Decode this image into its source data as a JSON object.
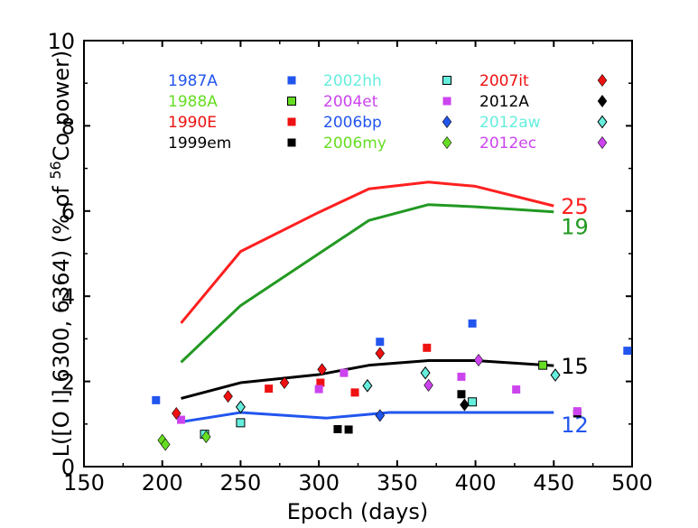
{
  "chart_data": {
    "type": "scatter",
    "xlabel": "Epoch (days)",
    "ylabel": {
      "main": "L([O I] 6300, 6364) (% of ",
      "sup": "56",
      "tail": "Co power)"
    },
    "xlim": [
      150,
      500
    ],
    "ylim": [
      0,
      10
    ],
    "xticks": [
      150,
      200,
      250,
      300,
      350,
      400,
      450,
      500
    ],
    "yticks": [
      0,
      2,
      4,
      6,
      8,
      10
    ],
    "grid": false,
    "legend_position": "top",
    "models": [
      {
        "name": "25",
        "color": "#ff2020",
        "x": [
          212,
          250,
          300,
          332,
          370,
          400,
          450
        ],
        "y": [
          3.37,
          5.05,
          5.97,
          6.52,
          6.68,
          6.58,
          6.12
        ]
      },
      {
        "name": "19",
        "color": "#229922",
        "x": [
          212,
          250,
          300,
          332,
          370,
          400,
          450
        ],
        "y": [
          2.45,
          3.78,
          5.0,
          5.78,
          6.15,
          6.1,
          5.98
        ]
      },
      {
        "name": "15",
        "color": "#000000",
        "x": [
          212,
          250,
          300,
          332,
          370,
          400,
          450
        ],
        "y": [
          1.6,
          1.97,
          2.16,
          2.38,
          2.49,
          2.49,
          2.37
        ]
      },
      {
        "name": "12",
        "color": "#2255ee",
        "x": [
          212,
          250,
          305,
          345,
          400,
          450
        ],
        "y": [
          1.05,
          1.27,
          1.14,
          1.27,
          1.27,
          1.27
        ]
      }
    ],
    "series": [
      {
        "name": "1987A",
        "color": "#2255ee",
        "marker": "square",
        "x": [
          196,
          339,
          398,
          497
        ],
        "y": [
          1.56,
          2.93,
          3.36,
          2.72
        ]
      },
      {
        "name": "1988A",
        "color": "#66dd22",
        "marker": "square-outline",
        "x": [
          443
        ],
        "y": [
          2.38
        ]
      },
      {
        "name": "1990E",
        "color": "#ee1111",
        "marker": "square",
        "x": [
          268,
          301,
          323,
          369
        ],
        "y": [
          1.83,
          1.97,
          1.74,
          2.79
        ]
      },
      {
        "name": "1999em",
        "color": "#000000",
        "marker": "square",
        "x": [
          312,
          319,
          391,
          465
        ],
        "y": [
          0.88,
          0.87,
          1.7,
          1.25
        ]
      },
      {
        "name": "2002hh",
        "color": "#66eedd",
        "marker": "square-outline",
        "x": [
          227,
          250,
          398
        ],
        "y": [
          0.76,
          1.03,
          1.52
        ]
      },
      {
        "name": "2004et",
        "color": "#cc44ee",
        "marker": "square",
        "x": [
          212,
          300,
          316,
          391,
          426,
          465
        ],
        "y": [
          1.1,
          1.82,
          2.2,
          2.11,
          1.81,
          1.3
        ]
      },
      {
        "name": "2006bp",
        "color": "#2255ee",
        "marker": "diamond",
        "x": [
          339
        ],
        "y": [
          1.2
        ]
      },
      {
        "name": "2006my",
        "color": "#66dd22",
        "marker": "diamond",
        "x": [
          200,
          202,
          228
        ],
        "y": [
          0.62,
          0.52,
          0.7
        ]
      },
      {
        "name": "2007it",
        "color": "#ee1111",
        "marker": "diamond",
        "x": [
          209,
          242,
          278,
          302,
          339
        ],
        "y": [
          1.25,
          1.65,
          1.97,
          2.28,
          2.66
        ]
      },
      {
        "name": "2012A",
        "color": "#000000",
        "marker": "diamond",
        "x": [
          393
        ],
        "y": [
          1.45
        ]
      },
      {
        "name": "2012aw",
        "color": "#66eedd",
        "marker": "diamond-outline",
        "x": [
          250,
          331,
          368,
          451
        ],
        "y": [
          1.4,
          1.9,
          2.2,
          2.15
        ]
      },
      {
        "name": "2012ec",
        "color": "#cc44ee",
        "marker": "diamond",
        "x": [
          370,
          402
        ],
        "y": [
          1.91,
          2.5
        ]
      }
    ]
  }
}
